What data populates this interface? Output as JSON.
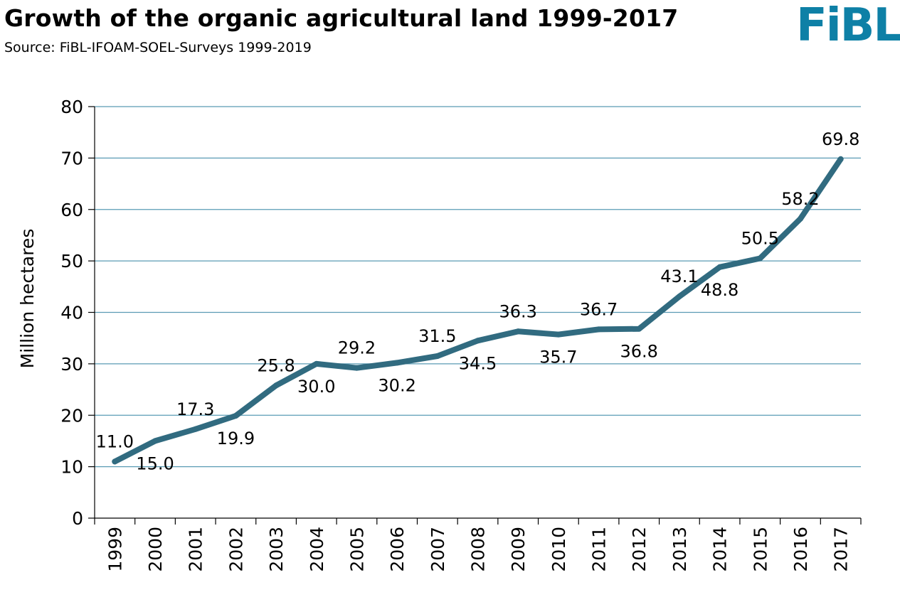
{
  "header": {
    "title": "Growth of the organic agricultural land 1999-2017",
    "subtitle": "Source: FiBL-IFOAM-SOEL-Surveys 1999-2019",
    "logo": "FiBL"
  },
  "colors": {
    "line": "#316b80",
    "grid": "#5a9bb4",
    "axis": "#000000",
    "logo": "#0e80a6"
  },
  "chart_data": {
    "type": "line",
    "title": "Growth of the organic agricultural land 1999-2017",
    "xlabel": "",
    "ylabel": "Million hectares",
    "ylim": [
      0,
      80
    ],
    "yticks": [
      0,
      10,
      20,
      30,
      40,
      50,
      60,
      70,
      80
    ],
    "grid": true,
    "categories": [
      "1999",
      "2000",
      "2001",
      "2002",
      "2003",
      "2004",
      "2005",
      "2006",
      "2007",
      "2008",
      "2009",
      "2010",
      "2011",
      "2012",
      "2013",
      "2014",
      "2015",
      "2016",
      "2017"
    ],
    "series": [
      {
        "name": "Organic agricultural land",
        "values": [
          11.0,
          15.0,
          17.3,
          19.9,
          25.8,
          30.0,
          29.2,
          30.2,
          31.5,
          34.5,
          36.3,
          35.7,
          36.7,
          36.8,
          43.1,
          48.8,
          50.5,
          58.2,
          69.8
        ],
        "data_labels": [
          {
            "index": 0,
            "text": "11.0",
            "position": "above"
          },
          {
            "index": 1,
            "text": "15.0",
            "position": "below"
          },
          {
            "index": 2,
            "text": "17.3",
            "position": "above"
          },
          {
            "index": 3,
            "text": "19.9",
            "position": "below"
          },
          {
            "index": 4,
            "text": "25.8",
            "position": "above"
          },
          {
            "index": 5,
            "text": "30.0",
            "position": "below"
          },
          {
            "index": 6,
            "text": "29.2",
            "position": "above"
          },
          {
            "index": 7,
            "text": "30.2",
            "position": "below"
          },
          {
            "index": 8,
            "text": "31.5",
            "position": "above"
          },
          {
            "index": 9,
            "text": "34.5",
            "position": "below"
          },
          {
            "index": 10,
            "text": "36.3",
            "position": "above"
          },
          {
            "index": 11,
            "text": "35.7",
            "position": "below"
          },
          {
            "index": 12,
            "text": "36.7",
            "position": "above"
          },
          {
            "index": 13,
            "text": "36.8",
            "position": "below"
          },
          {
            "index": 14,
            "text": "43.1",
            "position": "above"
          },
          {
            "index": 15,
            "text": "48.8",
            "position": "below"
          },
          {
            "index": 16,
            "text": "50.5",
            "position": "above"
          },
          {
            "index": 17,
            "text": "58.2",
            "position": "above"
          },
          {
            "index": 18,
            "text": "69.8",
            "position": "above"
          }
        ]
      }
    ]
  }
}
